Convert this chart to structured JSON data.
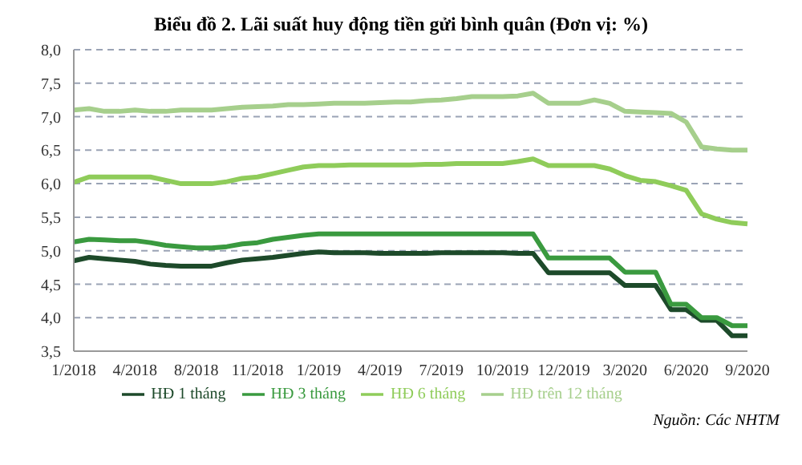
{
  "chart_data": {
    "type": "line",
    "title": "Biểu đồ 2. Lãi suất huy động tiền gửi bình quân (Đơn vị: %)",
    "categories": [
      "1/2018",
      null,
      null,
      null,
      "4/2018",
      null,
      null,
      null,
      "8/2018",
      null,
      null,
      null,
      "11/2018",
      null,
      null,
      null,
      "1/2019",
      null,
      null,
      null,
      "4/2019",
      null,
      null,
      null,
      "7/2019",
      null,
      null,
      null,
      "10/2019",
      null,
      null,
      null,
      "12/2019",
      null,
      null,
      null,
      "3/2020",
      null,
      null,
      null,
      "6/2020",
      null,
      null,
      null,
      "9/2020"
    ],
    "series": [
      {
        "name": "HĐ 1 tháng",
        "color": "#1d4a2a",
        "values": [
          4.85,
          4.9,
          4.88,
          4.86,
          4.84,
          4.8,
          4.78,
          4.77,
          4.77,
          4.77,
          4.82,
          4.86,
          4.88,
          4.9,
          4.93,
          4.96,
          4.98,
          4.97,
          4.97,
          4.97,
          4.96,
          4.96,
          4.96,
          4.96,
          4.97,
          4.97,
          4.97,
          4.97,
          4.97,
          4.96,
          4.96,
          4.67,
          4.67,
          4.67,
          4.67,
          4.67,
          4.48,
          4.48,
          4.48,
          4.12,
          4.12,
          3.96,
          3.96,
          3.73,
          3.73
        ]
      },
      {
        "name": "HĐ 3 tháng",
        "color": "#3a9a3f",
        "values": [
          5.13,
          5.17,
          5.16,
          5.15,
          5.15,
          5.12,
          5.08,
          5.06,
          5.04,
          5.04,
          5.06,
          5.1,
          5.12,
          5.17,
          5.2,
          5.23,
          5.25,
          5.25,
          5.25,
          5.25,
          5.25,
          5.25,
          5.25,
          5.25,
          5.25,
          5.25,
          5.25,
          5.25,
          5.25,
          5.25,
          5.25,
          4.89,
          4.89,
          4.89,
          4.89,
          4.89,
          4.68,
          4.68,
          4.68,
          4.2,
          4.2,
          4.0,
          4.0,
          3.88,
          3.88
        ]
      },
      {
        "name": "HĐ 6 tháng",
        "color": "#8fcc5a",
        "values": [
          6.02,
          6.1,
          6.1,
          6.1,
          6.1,
          6.1,
          6.05,
          6.0,
          6.0,
          6.0,
          6.03,
          6.08,
          6.1,
          6.15,
          6.2,
          6.25,
          6.27,
          6.27,
          6.28,
          6.28,
          6.28,
          6.28,
          6.28,
          6.29,
          6.29,
          6.3,
          6.3,
          6.3,
          6.3,
          6.33,
          6.37,
          6.27,
          6.27,
          6.27,
          6.27,
          6.22,
          6.12,
          6.05,
          6.03,
          5.97,
          5.9,
          5.55,
          5.47,
          5.42,
          5.4
        ]
      },
      {
        "name": "HĐ trên 12 tháng",
        "color": "#a6cf8c",
        "values": [
          7.1,
          7.12,
          7.08,
          7.08,
          7.1,
          7.08,
          7.08,
          7.1,
          7.1,
          7.1,
          7.12,
          7.14,
          7.15,
          7.16,
          7.18,
          7.18,
          7.19,
          7.2,
          7.2,
          7.2,
          7.21,
          7.22,
          7.22,
          7.24,
          7.25,
          7.27,
          7.3,
          7.3,
          7.3,
          7.31,
          7.35,
          7.2,
          7.2,
          7.2,
          7.25,
          7.2,
          7.08,
          7.07,
          7.06,
          7.05,
          6.92,
          6.55,
          6.52,
          6.5,
          6.5
        ]
      }
    ],
    "ylim": [
      3.5,
      8.0
    ],
    "yticks": [
      {
        "value": 3.5,
        "label": "3,5"
      },
      {
        "value": 4.0,
        "label": "4,0"
      },
      {
        "value": 4.5,
        "label": "4,5"
      },
      {
        "value": 5.0,
        "label": "5,0"
      },
      {
        "value": 5.5,
        "label": "5,5"
      },
      {
        "value": 6.0,
        "label": "6,0"
      },
      {
        "value": 6.5,
        "label": "6,5"
      },
      {
        "value": 7.0,
        "label": "7,0"
      },
      {
        "value": 7.5,
        "label": "7,5"
      },
      {
        "value": 8.0,
        "label": "8,0"
      }
    ],
    "grid": "y",
    "legend": "bottom",
    "marker": "none",
    "line_style": "solid",
    "annotations": [
      "Nguồn: Các NHTM"
    ]
  }
}
